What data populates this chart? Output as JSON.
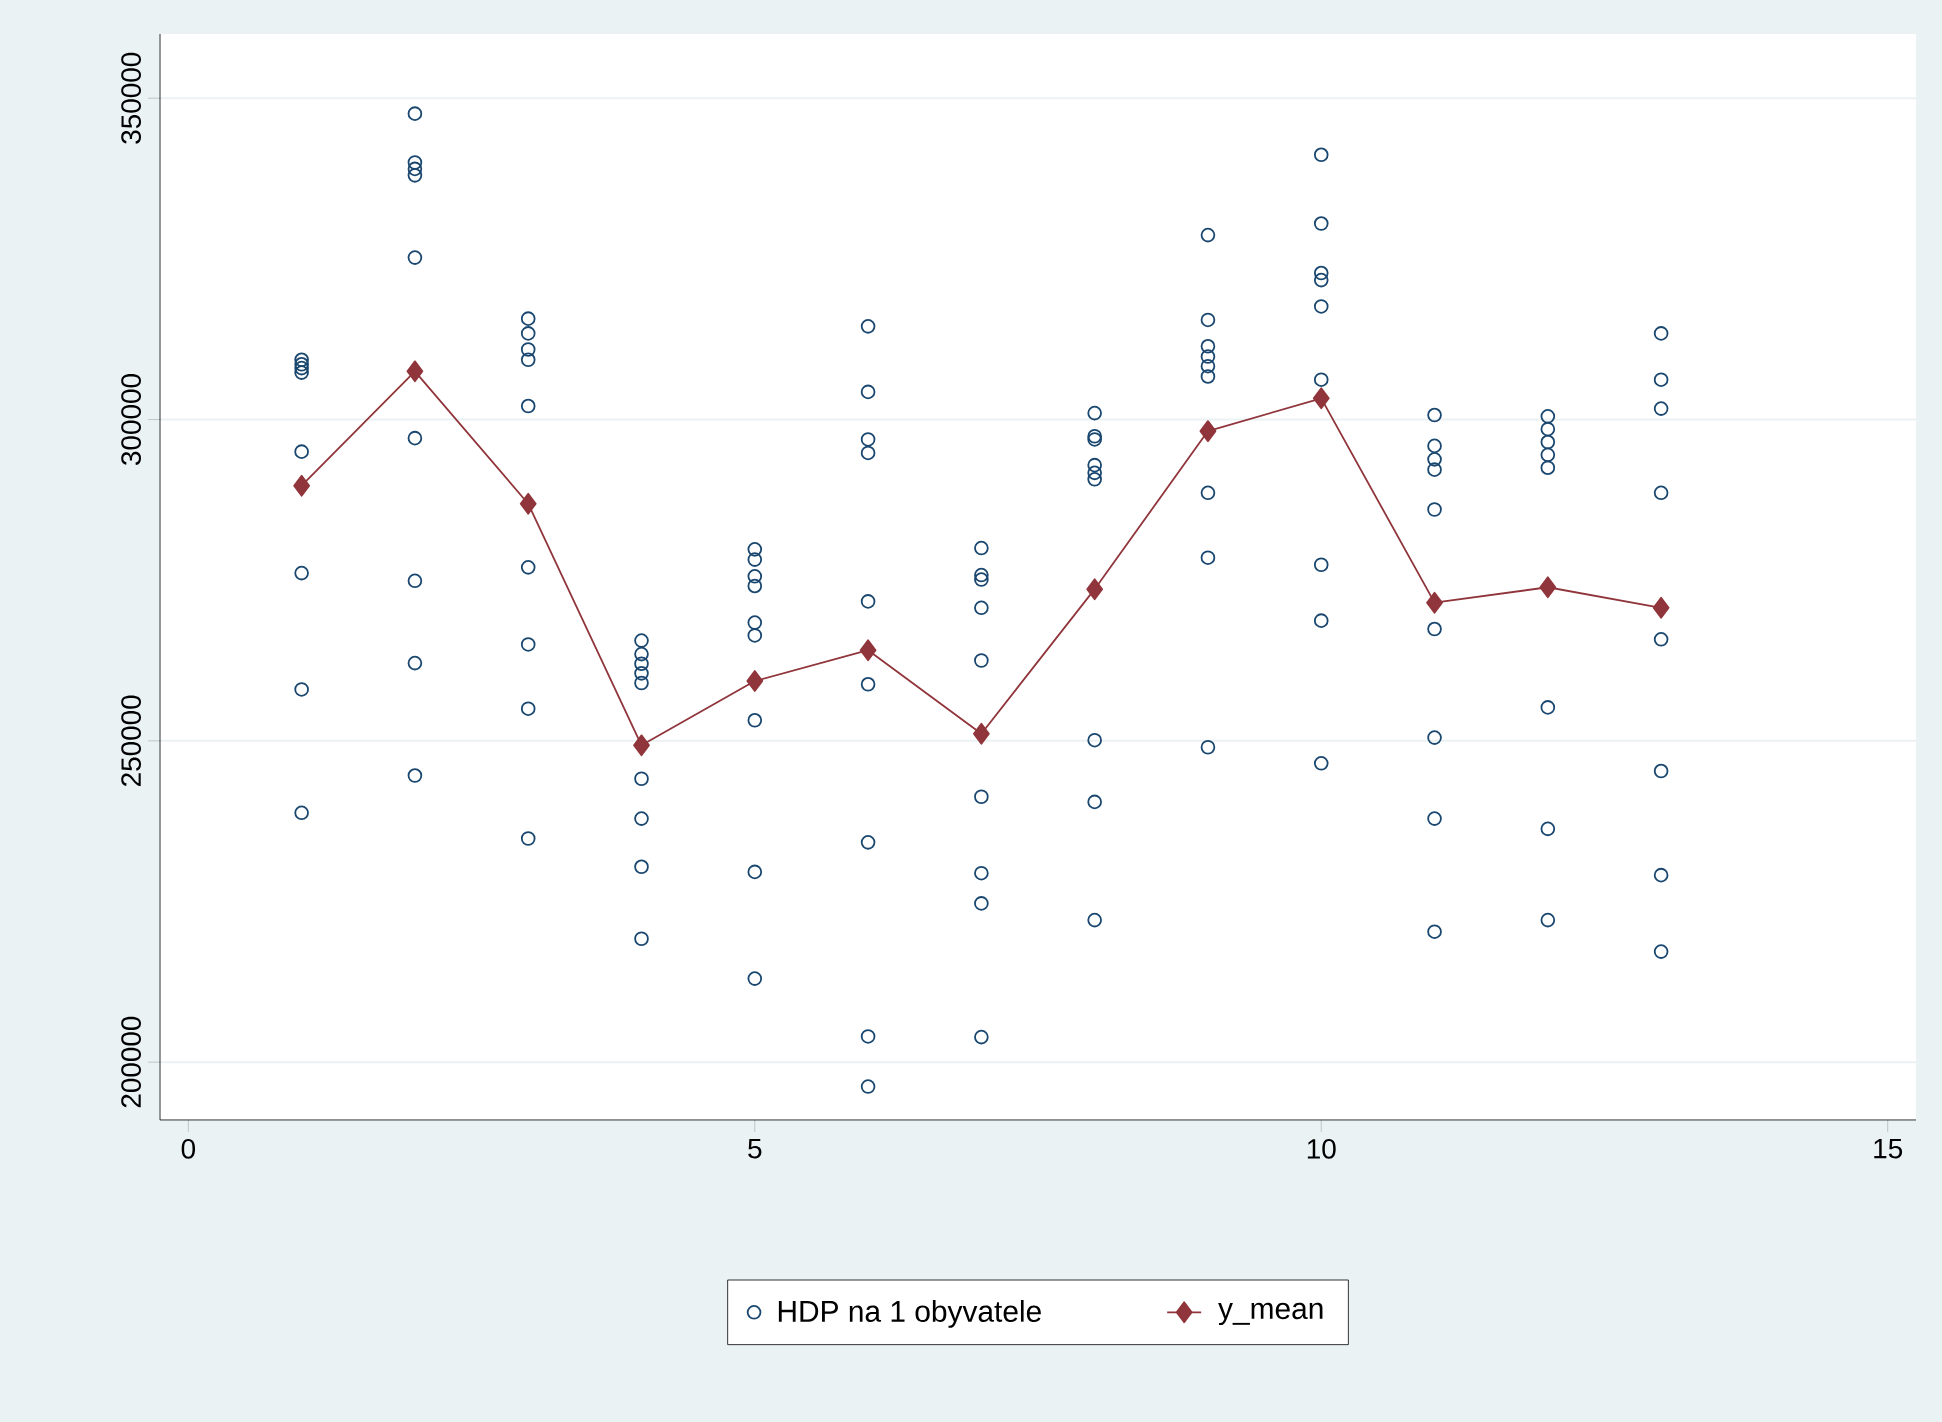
{
  "chart_data": {
    "type": "scatter",
    "xlim": [
      -0.25,
      15.25
    ],
    "ylim": [
      191000,
      360000
    ],
    "xticks": [
      0,
      5,
      10,
      15
    ],
    "yticks": [
      200000,
      250000,
      300000,
      350000
    ],
    "grid": "y",
    "legend": "bottom",
    "series": [
      {
        "name": "HDP na 1 obyvatele",
        "marker": "circle",
        "color": "#1a476f",
        "x": [
          1,
          1,
          1,
          1,
          1,
          1,
          1,
          1,
          2,
          2,
          2,
          2,
          2,
          2,
          2,
          2,
          2,
          3,
          3,
          3,
          3,
          3,
          3,
          3,
          3,
          3,
          4,
          4,
          4,
          4,
          4,
          4,
          4,
          4,
          4,
          5,
          5,
          5,
          5,
          5,
          5,
          5,
          5,
          5,
          6,
          6,
          6,
          6,
          6,
          6,
          6,
          6,
          6,
          7,
          7,
          7,
          7,
          7,
          7,
          7,
          7,
          7,
          8,
          8,
          8,
          8,
          8,
          8,
          8,
          8,
          8,
          9,
          9,
          9,
          9,
          9,
          9,
          9,
          9,
          9,
          10,
          10,
          10,
          10,
          10,
          10,
          10,
          10,
          10,
          11,
          11,
          11,
          11,
          11,
          11,
          11,
          11,
          11,
          12,
          12,
          12,
          12,
          12,
          12,
          12,
          12,
          13,
          13,
          13,
          13,
          13,
          13,
          13,
          13
        ],
        "values": [
          309300,
          308600,
          308000,
          307300,
          295000,
          276100,
          258000,
          238800,
          347600,
          340000,
          339000,
          338000,
          325200,
          297100,
          274900,
          262100,
          244600,
          315700,
          313400,
          310900,
          309300,
          302100,
          277000,
          265000,
          255000,
          234800,
          265600,
          263500,
          262000,
          260500,
          259000,
          244100,
          237900,
          230400,
          219200,
          279800,
          278200,
          275600,
          274100,
          268400,
          266400,
          253200,
          229600,
          213000,
          314500,
          304300,
          296900,
          294800,
          271700,
          258800,
          234200,
          204000,
          196200,
          280000,
          275800,
          275100,
          270700,
          262500,
          241300,
          229400,
          224700,
          203900,
          301000,
          297400,
          296900,
          292900,
          291700,
          290700,
          250100,
          240500,
          222100,
          328700,
          315500,
          311400,
          309800,
          308300,
          306700,
          288600,
          278500,
          249000,
          341200,
          330500,
          322800,
          321700,
          317600,
          306200,
          277400,
          268700,
          246500,
          300700,
          295900,
          293800,
          292200,
          286000,
          267400,
          250500,
          237900,
          220300,
          300500,
          298500,
          296500,
          294500,
          292500,
          255200,
          236300,
          222100,
          313400,
          306200,
          301700,
          288600,
          265800,
          245300,
          229100,
          217200
        ]
      },
      {
        "name": "y_mean",
        "type": "line",
        "marker": "diamond",
        "color": "#90353b",
        "x": [
          1,
          2,
          3,
          4,
          5,
          6,
          7,
          8,
          9,
          10,
          11,
          12,
          13
        ],
        "values": [
          289700,
          307500,
          286900,
          249300,
          259300,
          264100,
          251100,
          273600,
          298200,
          303300,
          271500,
          273900,
          270700
        ]
      }
    ]
  }
}
